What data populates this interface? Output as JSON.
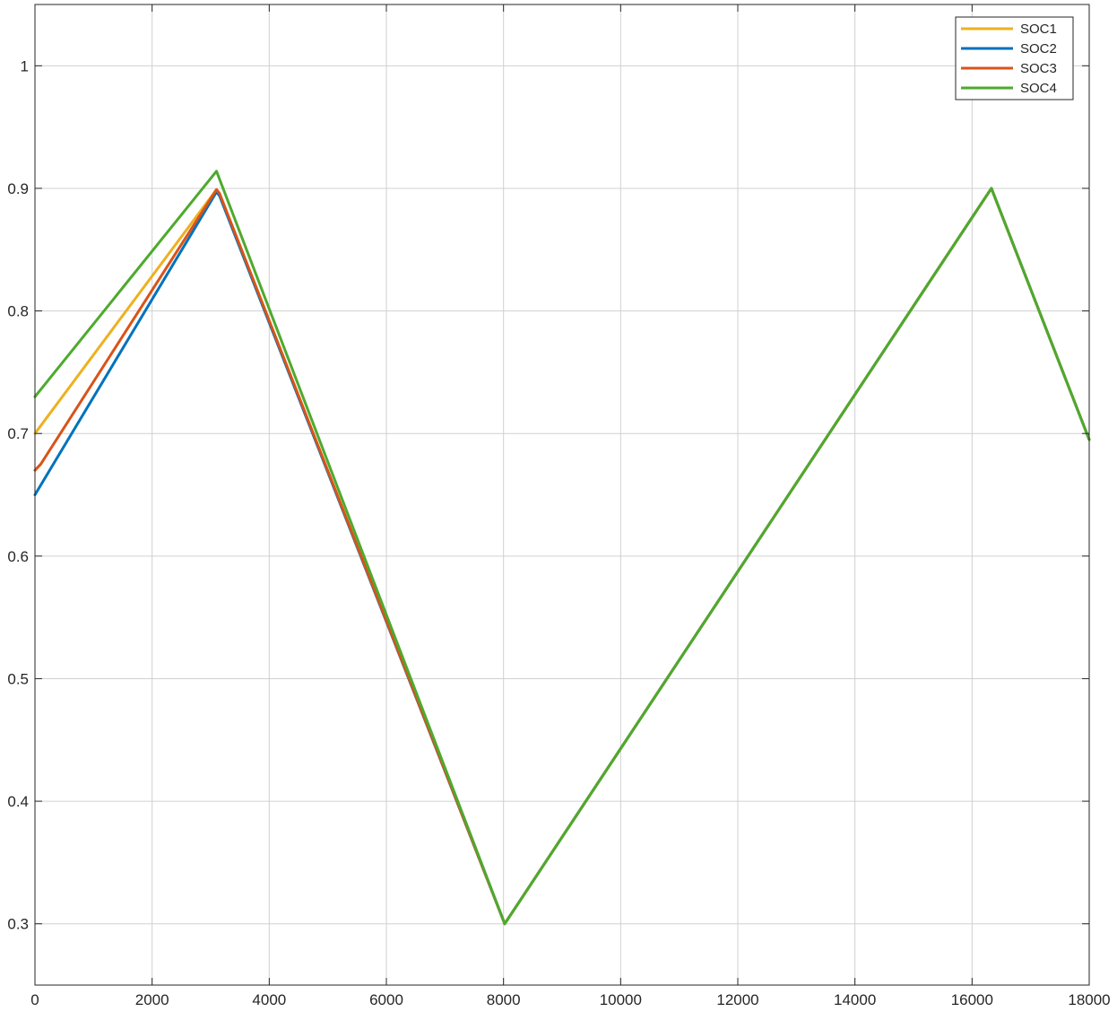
{
  "chart_data": {
    "type": "line",
    "title": "",
    "xlabel": "",
    "ylabel": "",
    "xlim": [
      0,
      18000
    ],
    "ylim": [
      0.25,
      1.05
    ],
    "xticks": [
      0,
      2000,
      4000,
      6000,
      8000,
      10000,
      12000,
      14000,
      16000,
      18000
    ],
    "yticks": [
      0.3,
      0.4,
      0.5,
      0.6,
      0.7,
      0.8,
      0.9,
      1
    ],
    "grid": true,
    "legend_position": "top-right",
    "series": [
      {
        "name": "SOC1",
        "color": "#EDB120",
        "x": [
          0,
          3100,
          3150,
          8020,
          16330,
          18000
        ],
        "y": [
          0.7,
          0.899,
          0.896,
          0.3,
          0.9,
          0.695
        ]
      },
      {
        "name": "SOC2",
        "color": "#0072BD",
        "x": [
          0,
          3100,
          3150,
          8020,
          16330,
          18000
        ],
        "y": [
          0.65,
          0.897,
          0.894,
          0.3,
          0.9,
          0.695
        ]
      },
      {
        "name": "SOC3",
        "color": "#D95319",
        "x": [
          0,
          100,
          3100,
          3150,
          8020,
          16330,
          18000
        ],
        "y": [
          0.67,
          0.675,
          0.899,
          0.896,
          0.3,
          0.9,
          0.695
        ]
      },
      {
        "name": "SOC4",
        "color": "#4DAA2E",
        "x": [
          0,
          3100,
          8020,
          16330,
          18000
        ],
        "y": [
          0.73,
          0.914,
          0.3,
          0.9,
          0.695
        ]
      }
    ]
  }
}
